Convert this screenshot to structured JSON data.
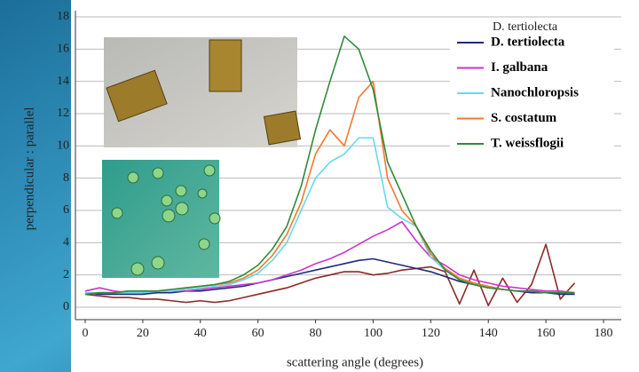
{
  "chart_data": {
    "type": "line",
    "x_label": "scattering angle (degrees)",
    "y_label": "perpendicular : parallel",
    "x": [
      0,
      5,
      10,
      15,
      20,
      25,
      30,
      35,
      40,
      45,
      50,
      55,
      60,
      65,
      70,
      75,
      80,
      85,
      90,
      95,
      100,
      105,
      110,
      115,
      120,
      125,
      130,
      135,
      140,
      145,
      150,
      155,
      160,
      165,
      170
    ],
    "series": [
      {
        "color": "#8b2a2a",
        "values": [
          0.8,
          0.7,
          0.6,
          0.6,
          0.5,
          0.5,
          0.4,
          0.3,
          0.4,
          0.3,
          0.4,
          0.6,
          0.8,
          1.0,
          1.2,
          1.5,
          1.8,
          2.0,
          2.2,
          2.2,
          2.0,
          2.1,
          2.3,
          2.4,
          2.5,
          2.2,
          0.2,
          2.3,
          0.1,
          1.8,
          0.3,
          1.4,
          3.9,
          0.5,
          1.5
        ]
      },
      {
        "name": "D. tertiolecta",
        "color": "#1f2a7a",
        "values": [
          0.9,
          0.8,
          0.8,
          0.8,
          0.8,
          0.9,
          0.9,
          1.0,
          1.0,
          1.1,
          1.2,
          1.3,
          1.5,
          1.7,
          1.9,
          2.1,
          2.3,
          2.5,
          2.7,
          2.9,
          3.0,
          2.8,
          2.6,
          2.4,
          2.2,
          1.9,
          1.6,
          1.4,
          1.2,
          1.1,
          1.0,
          0.9,
          0.9,
          0.8,
          0.8
        ]
      },
      {
        "name": "I. galbana",
        "color": "#cc33cc",
        "values": [
          1.0,
          1.2,
          1.0,
          0.9,
          0.9,
          1.0,
          1.0,
          1.0,
          1.1,
          1.2,
          1.3,
          1.4,
          1.5,
          1.7,
          2.0,
          2.3,
          2.7,
          3.0,
          3.4,
          3.9,
          4.4,
          4.8,
          5.3,
          4.1,
          3.1,
          2.6,
          2.0,
          1.7,
          1.5,
          1.3,
          1.2,
          1.1,
          1.0,
          1.0,
          0.9
        ]
      },
      {
        "name": "Nanochloropsis",
        "color": "#66d9ee",
        "values": [
          0.9,
          0.9,
          0.9,
          0.9,
          0.9,
          1.0,
          1.0,
          1.1,
          1.2,
          1.3,
          1.4,
          1.7,
          2.1,
          2.9,
          4.0,
          6.0,
          8.0,
          9.0,
          9.5,
          10.5,
          10.5,
          6.2,
          5.5,
          5.0,
          3.1,
          2.3,
          1.7,
          1.4,
          1.2,
          1.1,
          1.0,
          1.0,
          0.9,
          0.9,
          0.9
        ]
      },
      {
        "name": "S. costatum",
        "color": "#f07a30",
        "values": [
          0.8,
          0.9,
          0.9,
          1.0,
          1.0,
          1.0,
          1.1,
          1.2,
          1.3,
          1.4,
          1.5,
          1.8,
          2.3,
          3.2,
          4.5,
          6.5,
          9.5,
          11.0,
          10.0,
          13.0,
          14.0,
          8.0,
          6.0,
          5.0,
          3.3,
          2.4,
          1.8,
          1.5,
          1.3,
          1.1,
          1.0,
          1.0,
          0.9,
          0.9,
          0.9
        ]
      },
      {
        "name": "T. weissflogii",
        "color": "#2e8b3a",
        "values": [
          0.8,
          0.9,
          0.9,
          1.0,
          1.0,
          1.0,
          1.1,
          1.2,
          1.3,
          1.4,
          1.6,
          2.0,
          2.6,
          3.6,
          5.0,
          7.5,
          11.0,
          14.0,
          16.8,
          16.0,
          13.5,
          9.0,
          7.0,
          5.0,
          3.5,
          2.3,
          1.7,
          1.4,
          1.2,
          1.1,
          1.0,
          1.0,
          0.9,
          0.9,
          0.9
        ]
      }
    ],
    "xlim": [
      0,
      180
    ],
    "xticks": [
      0,
      20,
      40,
      60,
      80,
      100,
      120,
      140,
      160,
      180
    ],
    "ylim": [
      0,
      18
    ],
    "yticks": [
      0,
      2,
      4,
      6,
      8,
      10,
      12,
      14,
      16,
      18
    ],
    "grid": true
  }
}
